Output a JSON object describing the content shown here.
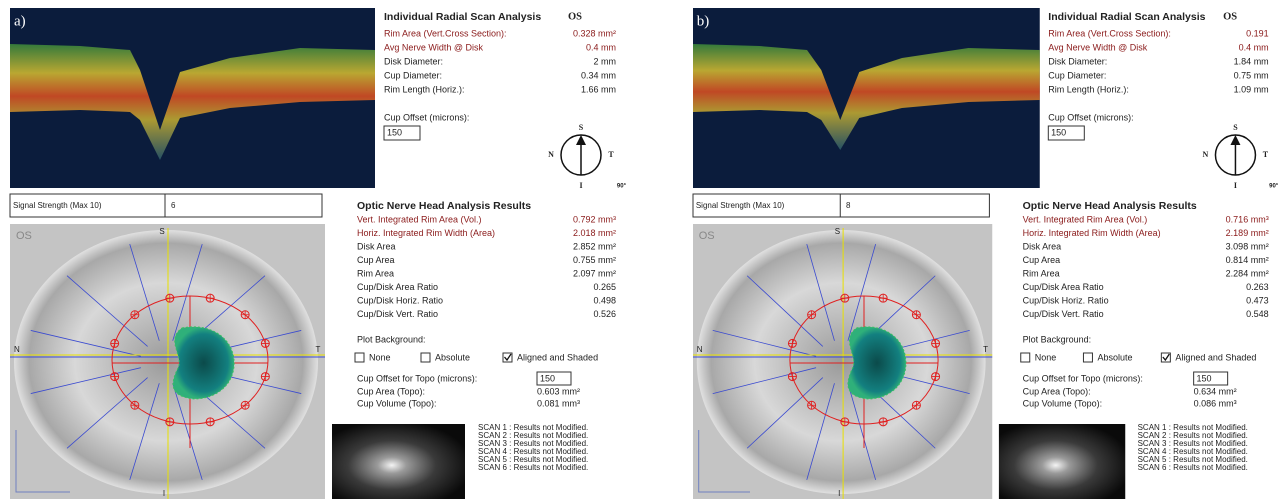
{
  "panels": [
    {
      "label": "a)",
      "scan_title": "Individual Radial Scan Analysis",
      "eye": "OS",
      "scan_rows": [
        {
          "label": "Rim Area (Vert.Cross Section):",
          "value": "0.328 mm²"
        },
        {
          "label": "Avg Nerve Width @ Disk",
          "value": "0.4 mm"
        },
        {
          "label": "Disk Diameter:",
          "value": "2 mm"
        },
        {
          "label": "Cup Diameter:",
          "value": "0.34 mm"
        },
        {
          "label": "Rim Length (Horiz.):",
          "value": "1.66 mm"
        }
      ],
      "cup_offset_label": "Cup Offset (microns):",
      "cup_offset": "150",
      "compass": {
        "s": "S",
        "n": "N",
        "t": "T",
        "i": "I",
        "angle": "90°"
      },
      "signal_label": "Signal Strength (Max 10)",
      "signal": "6",
      "onh_title": "Optic Nerve Head Analysis Results",
      "onh_rows": [
        {
          "label": "Vert. Integrated Rim Area (Vol.)",
          "value": "0.792 mm³"
        },
        {
          "label": "Horiz. Integrated Rim Width (Area)",
          "value": "2.018 mm²"
        },
        {
          "label": "Disk Area",
          "value": "2.852 mm²"
        },
        {
          "label": "Cup Area",
          "value": "0.755 mm²"
        },
        {
          "label": "Rim Area",
          "value": "2.097 mm²"
        },
        {
          "label": "Cup/Disk Area Ratio",
          "value": "0.265"
        },
        {
          "label": "Cup/Disk Horiz. Ratio",
          "value": "0.498"
        },
        {
          "label": "Cup/Disk Vert. Ratio",
          "value": "0.526"
        }
      ],
      "plot_background_label": "Plot Background:",
      "plot_options": [
        {
          "label": "None",
          "checked": false
        },
        {
          "label": "Absolute",
          "checked": false
        },
        {
          "label": "Aligned and Shaded",
          "checked": true
        }
      ],
      "topo_offset_label": "Cup Offset for Topo (microns):",
      "topo_offset": "150",
      "topo_rows": [
        {
          "label": "Cup Area (Topo):",
          "value": "0.603 mm²"
        },
        {
          "label": "Cup Volume (Topo):",
          "value": "0.081 mm³"
        }
      ],
      "scan_status": [
        "SCAN 1 : Results not Modified.",
        "SCAN 2 : Results not Modified.",
        "SCAN 3 : Results not Modified.",
        "SCAN 4 : Results not Modified.",
        "SCAN 5 : Results not Modified.",
        "SCAN 6 : Results not Modified."
      ],
      "topo_map": {
        "eye": "OS",
        "s": "S",
        "n": "N",
        "t": "T",
        "i": "I"
      }
    },
    {
      "label": "b)",
      "scan_title": "Individual Radial Scan Analysis",
      "eye": "OS",
      "scan_rows": [
        {
          "label": "Rim Area (Vert.Cross Section):",
          "value": "0.191"
        },
        {
          "label": "Avg Nerve Width @ Disk",
          "value": "0.4 mm"
        },
        {
          "label": "Disk Diameter:",
          "value": "1.84 mm"
        },
        {
          "label": "Cup Diameter:",
          "value": "0.75 mm"
        },
        {
          "label": "Rim Length (Horiz.):",
          "value": "1.09 mm"
        }
      ],
      "cup_offset_label": "Cup Offset (microns):",
      "cup_offset": "150",
      "compass": {
        "s": "S",
        "n": "N",
        "t": "T",
        "i": "I",
        "angle": "90°"
      },
      "signal_label": "Signal Strength (Max 10)",
      "signal": "8",
      "onh_title": "Optic Nerve Head Analysis Results",
      "onh_rows": [
        {
          "label": "Vert. Integrated Rim Area (Vol.)",
          "value": "0.716 mm³"
        },
        {
          "label": "Horiz. Integrated Rim Width (Area)",
          "value": "2.189 mm²"
        },
        {
          "label": "Disk Area",
          "value": "3.098 mm²"
        },
        {
          "label": "Cup Area",
          "value": "0.814 mm²"
        },
        {
          "label": "Rim Area",
          "value": "2.284 mm²"
        },
        {
          "label": "Cup/Disk Area Ratio",
          "value": "0.263"
        },
        {
          "label": "Cup/Disk Horiz. Ratio",
          "value": "0.473"
        },
        {
          "label": "Cup/Disk Vert. Ratio",
          "value": "0.548"
        }
      ],
      "plot_background_label": "Plot Background:",
      "plot_options": [
        {
          "label": "None",
          "checked": false
        },
        {
          "label": "Absolute",
          "checked": false
        },
        {
          "label": "Aligned and Shaded",
          "checked": true
        }
      ],
      "topo_offset_label": "Cup Offset for Topo (microns):",
      "topo_offset": "150",
      "topo_rows": [
        {
          "label": "Cup Area (Topo):",
          "value": "0.634 mm²"
        },
        {
          "label": "Cup Volume (Topo):",
          "value": "0.086 mm³"
        }
      ],
      "scan_status": [
        "SCAN 1 : Results not Modified.",
        "SCAN 2 : Results not Modified.",
        "SCAN 3 : Results not Modified.",
        "SCAN 4 : Results not Modified.",
        "SCAN 5 : Results not Modified.",
        "SCAN 6 : Results not Modified."
      ],
      "topo_map": {
        "eye": "OS",
        "s": "S",
        "n": "N",
        "t": "T",
        "i": "I"
      }
    }
  ]
}
